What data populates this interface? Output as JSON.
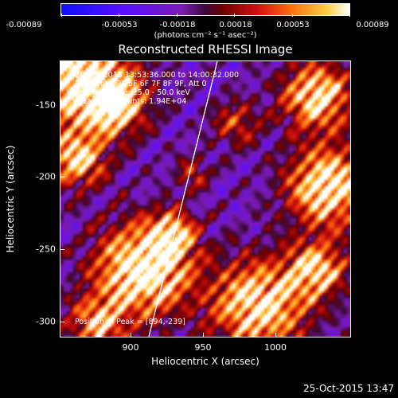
{
  "colorbar": {
    "ticks": [
      "-0.00089",
      "-0.00053",
      "-0.00018",
      "0.00018",
      "0.00053",
      "0.00089"
    ],
    "units": "(photons cm⁻² s⁻¹ asec⁻²)",
    "range": [
      -0.00089,
      0.00089
    ]
  },
  "title": "Reconstructed RHESSI Image",
  "info": {
    "line1": "25-Oct-2015 13:53:36.000 to 14:00:32.000",
    "line2": "Detectors: 3F 5F 6F 7F 8F 9F, Att 0",
    "line3": "Energy Range: 25.0 - 50.0 keV",
    "line4": "Clean     Total counts: 1.94E+04",
    "peak": "Position of Peak = [894,-239]"
  },
  "axes": {
    "xlabel": "Heliocentric X (arcsec)",
    "ylabel": "Heliocentric Y (arcsec)",
    "xticks": [
      "900",
      "950",
      "1000"
    ],
    "yticks": [
      "-150",
      "-200",
      "-250",
      "-300"
    ],
    "xrange": [
      855,
      1043
    ],
    "yrange": [
      -310,
      -126
    ]
  },
  "footer": "25-Oct-2015 13:47"
}
